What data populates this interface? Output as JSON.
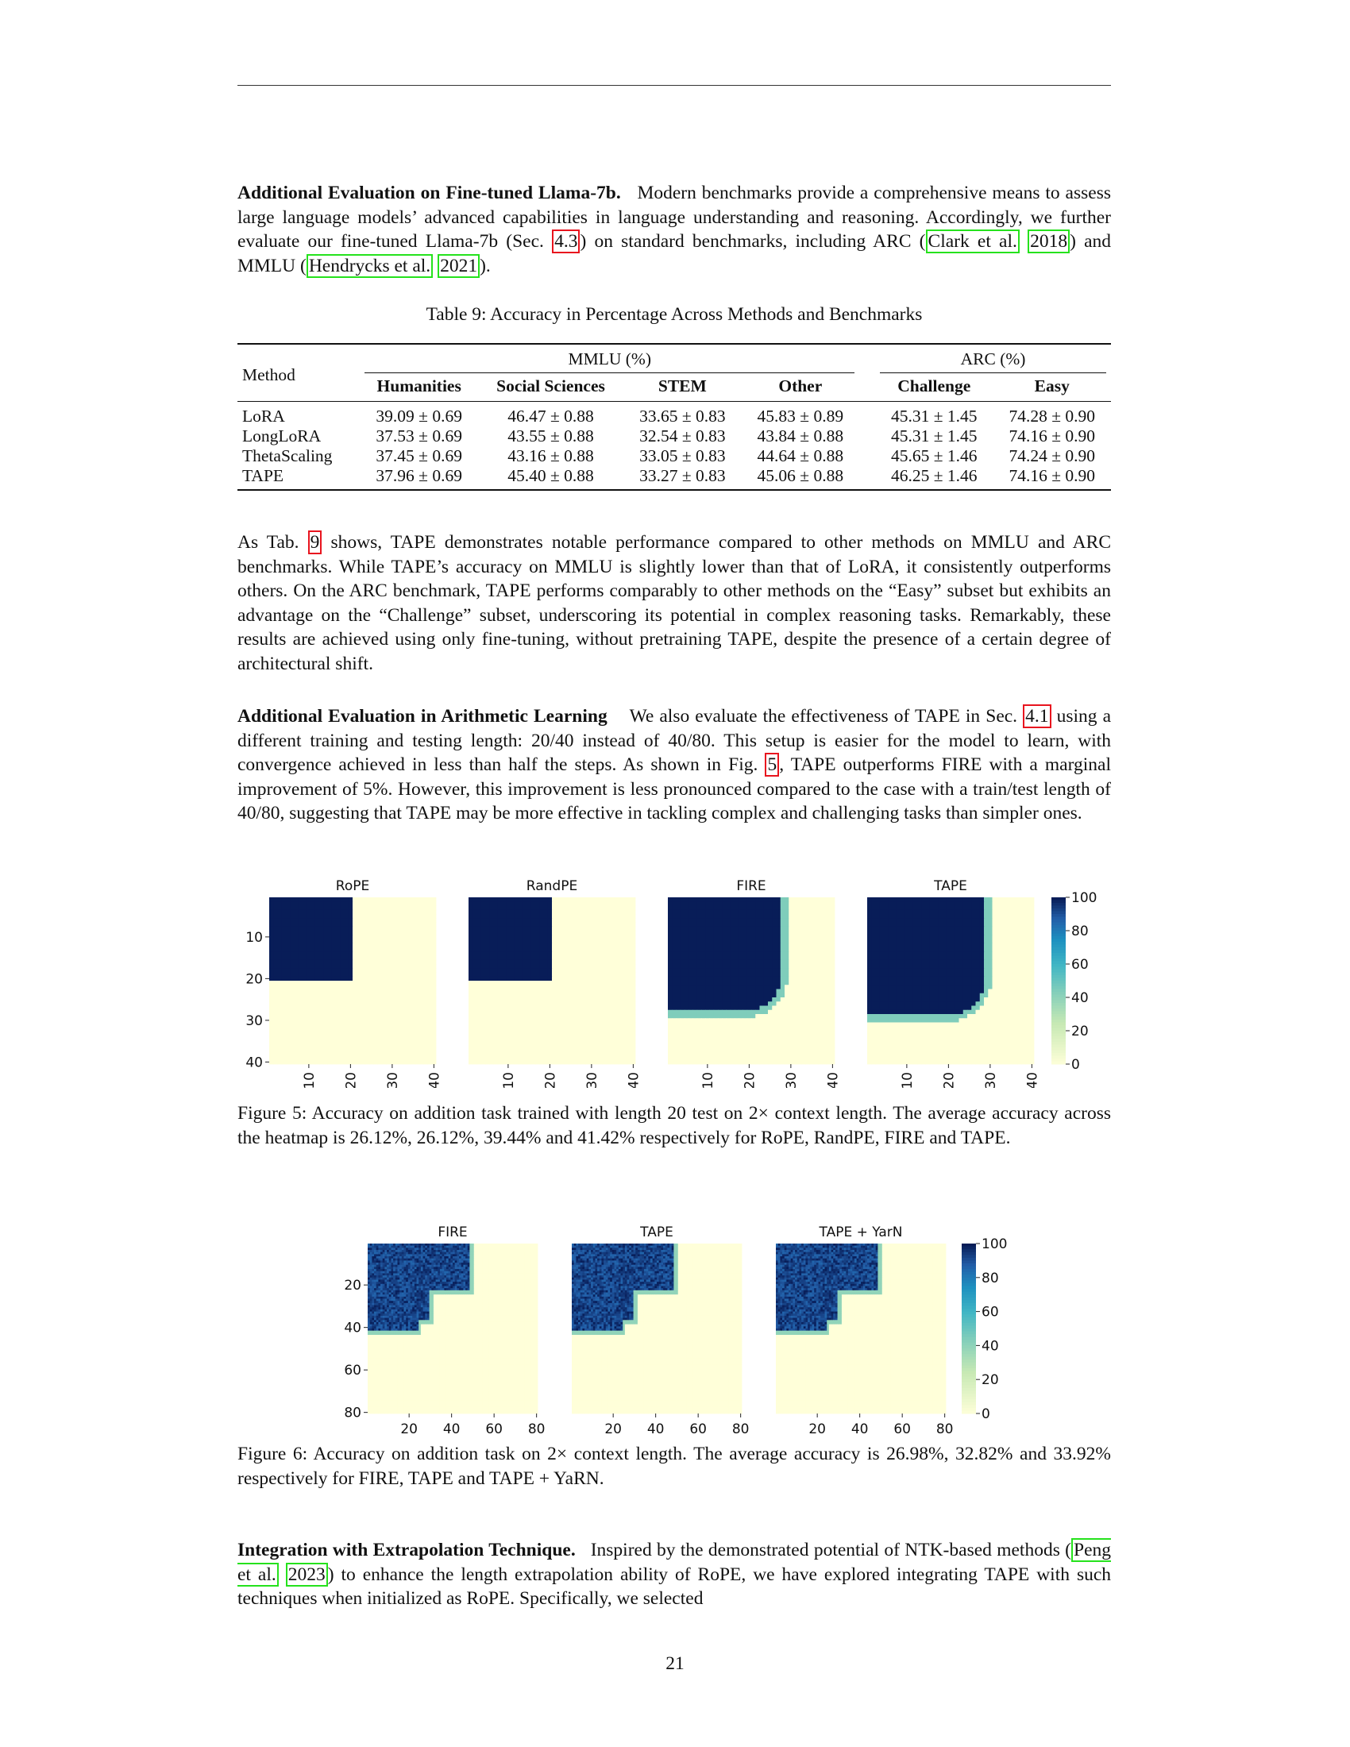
{
  "paragraphs": {
    "llama_title": "Additional Evaluation on Fine-tuned Llama-7b.",
    "llama_a": "Modern benchmarks provide a comprehensive means to assess large language models’ advanced capabilities in language understanding and reasoning. Accordingly, we further evaluate our fine-tuned Llama-7b (Sec.",
    "llama_ref_sec": "4.3",
    "llama_b": ") on standard benchmarks, including ARC (",
    "llama_ref_clark": "Clark et al.",
    "llama_ref_clark_year": "2018",
    "llama_c": ") and MMLU (",
    "llama_ref_hend": "Hendrycks et al.",
    "llama_ref_hend_year": "2021",
    "llama_d": ").",
    "tab_a": "As Tab.",
    "tab_ref": "9",
    "tab_b": "shows, TAPE demonstrates notable performance compared to other methods on MMLU and ARC benchmarks. While TAPE’s accuracy on MMLU is slightly lower than that of LoRA, it consistently outperforms others. On the ARC benchmark, TAPE performs comparably to other methods on the “Easy” subset but exhibits an advantage on the “Challenge” subset, underscoring its potential in complex reasoning tasks. Remarkably, these results are achieved using only fine-tuning, without pretraining TAPE, despite the presence of a certain degree of architectural shift.",
    "arith_title": "Additional Evaluation in Arithmetic Learning",
    "arith_a": "We also evaluate the effectiveness of TAPE in Sec.",
    "arith_ref_sec": "4.1",
    "arith_b": "using a different training and testing length: 20/40 instead of 40/80. This setup is easier for the model to learn, with convergence achieved in less than half the steps. As shown in Fig.",
    "arith_ref_fig": "5",
    "arith_c": ", TAPE outperforms FIRE with a marginal improvement of 5%. However, this improvement is less pronounced compared to the case with a train/test length of 40/80, suggesting that TAPE may be more effective in tackling complex and challenging tasks than simpler ones.",
    "integ_title": "Integration with Extrapolation Technique.",
    "integ_a": "Inspired by the demonstrated potential of NTK-based methods (",
    "integ_ref": "Peng et al.",
    "integ_ref_year": "2023",
    "integ_b": ") to enhance the length extrapolation ability of RoPE, we have explored integrating TAPE with such techniques when initialized as RoPE. Specifically, we selected"
  },
  "table": {
    "caption": "Table 9: Accuracy in Percentage Across Methods and Benchmarks",
    "method_header": "Method",
    "group_mmlu": "MMLU (%)",
    "group_arc": "ARC (%)",
    "columns": [
      "Humanities",
      "Social Sciences",
      "STEM",
      "Other",
      "Challenge",
      "Easy"
    ],
    "rows": [
      {
        "method": "LoRA",
        "cells": [
          "39.09 ± 0.69",
          "46.47 ± 0.88",
          "33.65 ± 0.83",
          "45.83 ± 0.89",
          "45.31 ± 1.45",
          "74.28 ± 0.90"
        ]
      },
      {
        "method": "LongLoRA",
        "cells": [
          "37.53 ± 0.69",
          "43.55 ± 0.88",
          "32.54 ± 0.83",
          "43.84 ± 0.88",
          "45.31 ± 1.45",
          "74.16 ± 0.90"
        ]
      },
      {
        "method": "ThetaScaling",
        "cells": [
          "37.45 ± 0.69",
          "43.16 ± 0.88",
          "33.05 ± 0.83",
          "44.64 ± 0.88",
          "45.65 ± 1.46",
          "74.24 ± 0.90"
        ]
      },
      {
        "method": "TAPE",
        "cells": [
          "37.96 ± 0.69",
          "45.40 ± 0.88",
          "33.27 ± 0.83",
          "45.06 ± 0.88",
          "46.25 ± 1.46",
          "74.16 ± 0.90"
        ]
      }
    ]
  },
  "figure5_caption": "Figure 5: Accuracy on addition task trained with length 20 test on 2× context length. The average accuracy across the heatmap is 26.12%, 26.12%, 39.44% and 41.42% respectively for RoPE, RandPE, FIRE and TAPE.",
  "figure6_caption": "Figure 6: Accuracy on addition task on 2× context length. The average accuracy is 26.98%, 32.82% and 33.92% respectively for FIRE, TAPE and TAPE + YaRN.",
  "page_number": "21",
  "colors": {
    "high": "#081d58",
    "mid": "#41b6c4",
    "low": "#ffffd9"
  },
  "chart_data": [
    {
      "type": "heatmap",
      "figure": "Figure 5",
      "panels": [
        {
          "title": "RoPE",
          "pattern": "square",
          "solved_up_to": 20
        },
        {
          "title": "RandPE",
          "pattern": "square",
          "solved_up_to": 20
        },
        {
          "title": "FIRE",
          "pattern": "rounded",
          "solved_up_to": 27
        },
        {
          "title": "TAPE",
          "pattern": "rounded",
          "solved_up_to": 28
        }
      ],
      "grid_size": 40,
      "x_ticks": [
        "10",
        "20",
        "30",
        "40"
      ],
      "y_ticks": [
        "10",
        "20",
        "30",
        "40"
      ],
      "colorbar_ticks": [
        "100",
        "80",
        "60",
        "40",
        "20",
        "0"
      ],
      "colorbar_range": [
        0,
        100
      ]
    },
    {
      "type": "heatmap",
      "figure": "Figure 6",
      "panels": [
        {
          "title": "FIRE",
          "pattern": "stepped"
        },
        {
          "title": "TAPE",
          "pattern": "stepped"
        },
        {
          "title": "TAPE + YarN",
          "pattern": "stepped"
        }
      ],
      "grid_size": 80,
      "x_ticks": [
        "20",
        "40",
        "60",
        "80"
      ],
      "y_ticks": [
        "20",
        "40",
        "60",
        "80"
      ],
      "colorbar_ticks": [
        "100",
        "80",
        "60",
        "40",
        "20",
        "0"
      ],
      "colorbar_range": [
        0,
        100
      ]
    }
  ]
}
